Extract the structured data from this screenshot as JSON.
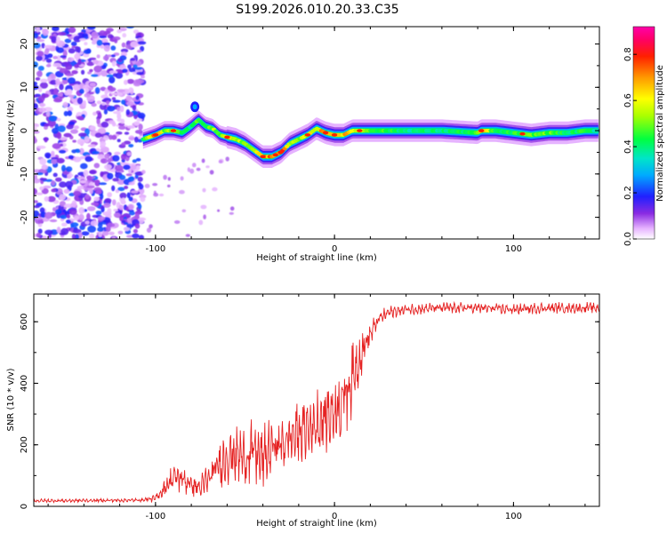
{
  "title": "S199.2026.010.20.33.C35",
  "chart_data": [
    {
      "type": "heatmap",
      "title": "S199.2026.010.20.33.C35",
      "xlabel": "Height of straight line (km)",
      "ylabel": "Frequency (Hz)",
      "xlim": [
        -168,
        148
      ],
      "ylim": [
        -25,
        24
      ],
      "xticks": [
        "-100",
        "0",
        "100"
      ],
      "xtick_values": [
        -100,
        0,
        100
      ],
      "yticks": [
        "-20",
        "-10",
        "0",
        "10",
        "20"
      ],
      "ytick_values": [
        -20,
        -10,
        0,
        10,
        20
      ],
      "colorbar": {
        "label": "Normalized spectral amplitude",
        "ticks": [
          "0.0",
          "0.2",
          "0.4",
          "0.6",
          "0.8"
        ],
        "tick_values": [
          0.0,
          0.2,
          0.4,
          0.6,
          0.8
        ],
        "range": [
          0,
          0.92
        ]
      },
      "noise_region_x": [
        -168,
        -107
      ],
      "ridge": {
        "x": [
          -107,
          -100,
          -95,
          -90,
          -85,
          -80,
          -76,
          -72,
          -68,
          -64,
          -60,
          -55,
          -50,
          -45,
          -40,
          -35,
          -30,
          -25,
          -20,
          -15,
          -10,
          -5,
          0,
          5,
          10,
          15,
          20,
          40,
          60,
          80,
          82,
          90,
          100,
          110,
          120,
          130,
          140,
          148
        ],
        "y": [
          -2,
          -1,
          0,
          0,
          -0.5,
          1,
          2.5,
          1,
          0.5,
          -1,
          -1.5,
          -2,
          -3,
          -4.5,
          -6,
          -6,
          -5,
          -3,
          -2,
          -1,
          0.5,
          -0.5,
          -1,
          -1,
          0,
          0,
          0,
          0,
          0,
          -0.5,
          0,
          0,
          -0.5,
          -1,
          -0.5,
          -0.5,
          0,
          0
        ],
        "amp": [
          0.45,
          0.85,
          0.55,
          0.65,
          0.5,
          0.45,
          0.55,
          0.45,
          0.6,
          0.55,
          0.75,
          0.65,
          0.55,
          0.65,
          0.75,
          0.85,
          0.9,
          0.6,
          0.55,
          0.7,
          0.65,
          0.85,
          0.8,
          0.75,
          0.7,
          0.65,
          0.55,
          0.45,
          0.45,
          0.5,
          0.85,
          0.45,
          0.5,
          0.55,
          0.55,
          0.45,
          0.5,
          0.4
        ]
      }
    },
    {
      "type": "line",
      "xlabel": "Height of straight line (km)",
      "ylabel": "SNR (10 * v/v)",
      "xlim": [
        -168,
        148
      ],
      "ylim": [
        0,
        690
      ],
      "xticks": [
        "-100",
        "0",
        "100"
      ],
      "xtick_values": [
        -100,
        0,
        100
      ],
      "yticks": [
        "0",
        "200",
        "400",
        "600"
      ],
      "ytick_values": [
        0,
        200,
        400,
        600
      ],
      "color": "#e52222",
      "series": [
        {
          "name": "SNR",
          "x": [
            -168,
            -110,
            -100,
            -95,
            -90,
            -85,
            -80,
            -75,
            -70,
            -65,
            -60,
            -55,
            -50,
            -45,
            -40,
            -35,
            -30,
            -25,
            -20,
            -15,
            -10,
            -5,
            0,
            5,
            10,
            15,
            20,
            25,
            30,
            40,
            60,
            80,
            100,
            120,
            148
          ],
          "base": [
            18,
            20,
            25,
            60,
            95,
            90,
            70,
            60,
            90,
            130,
            165,
            170,
            160,
            180,
            150,
            195,
            200,
            220,
            240,
            255,
            270,
            290,
            310,
            350,
            420,
            500,
            560,
            610,
            630,
            640,
            645,
            645,
            640,
            645,
            645
          ],
          "jitter": [
            6,
            6,
            12,
            30,
            45,
            50,
            45,
            40,
            60,
            80,
            90,
            95,
            100,
            105,
            110,
            100,
            95,
            95,
            100,
            105,
            110,
            115,
            120,
            140,
            120,
            80,
            40,
            25,
            20,
            18,
            18,
            18,
            18,
            18,
            18
          ]
        }
      ]
    }
  ]
}
